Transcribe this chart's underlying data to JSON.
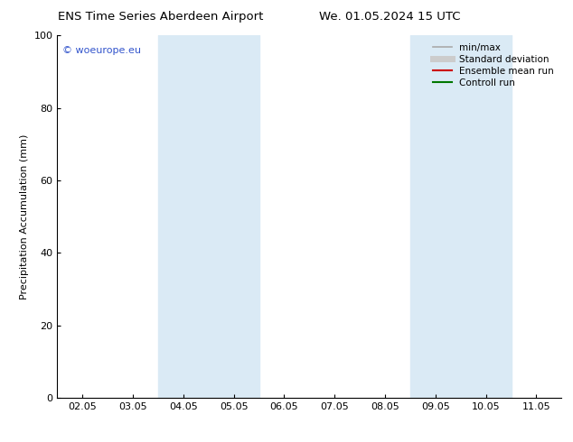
{
  "title_left": "ENS Time Series Aberdeen Airport",
  "title_right": "We. 01.05.2024 15 UTC",
  "ylabel": "Precipitation Accumulation (mm)",
  "ylim": [
    0,
    100
  ],
  "xtick_labels": [
    "02.05",
    "03.05",
    "04.05",
    "05.05",
    "06.05",
    "07.05",
    "08.05",
    "09.05",
    "10.05",
    "11.05"
  ],
  "ytick_positions": [
    0,
    20,
    40,
    60,
    80,
    100
  ],
  "shaded_bands": [
    {
      "xmin": 2,
      "xmax": 3,
      "color": "#daeaf5"
    },
    {
      "xmin": 3,
      "xmax": 4,
      "color": "#daeaf5"
    },
    {
      "xmin": 7,
      "xmax": 8,
      "color": "#daeaf5"
    },
    {
      "xmin": 8,
      "xmax": 9,
      "color": "#daeaf5"
    }
  ],
  "watermark": "© woeurope.eu",
  "watermark_color": "#3355cc",
  "legend_entries": [
    {
      "label": "min/max",
      "color": "#aaaaaa",
      "lw": 1.2,
      "style": "-"
    },
    {
      "label": "Standard deviation",
      "color": "#cccccc",
      "lw": 5,
      "style": "-"
    },
    {
      "label": "Ensemble mean run",
      "color": "#cc0000",
      "lw": 1.5,
      "style": "-"
    },
    {
      "label": "Controll run",
      "color": "#007700",
      "lw": 1.5,
      "style": "-"
    }
  ],
  "background_color": "#ffffff",
  "plot_bg_color": "#ffffff",
  "title_fontsize": 9.5,
  "ylabel_fontsize": 8,
  "tick_fontsize": 8,
  "legend_fontsize": 7.5
}
